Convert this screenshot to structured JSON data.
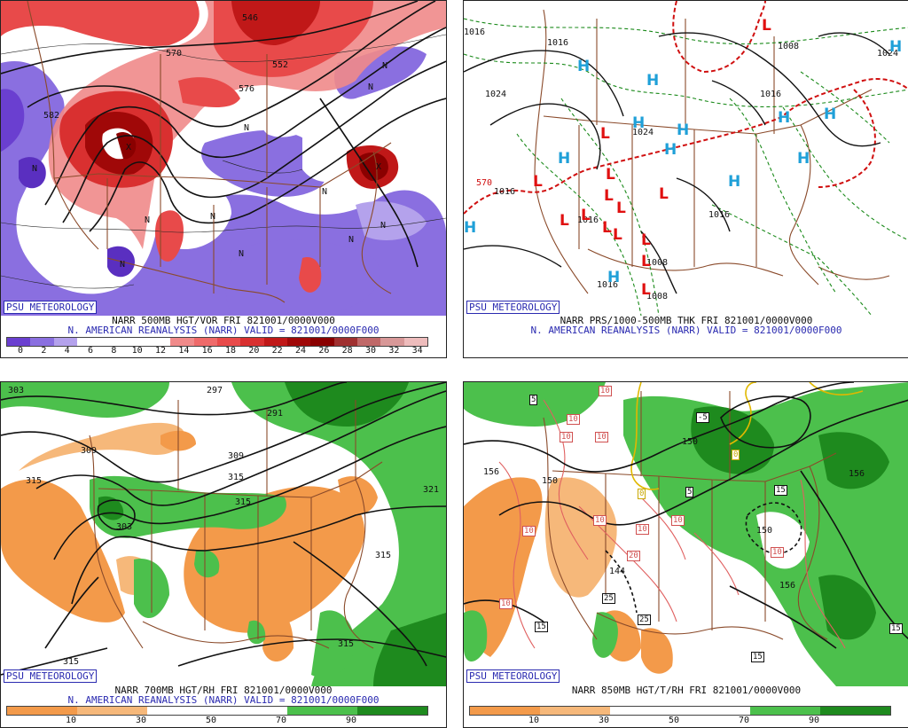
{
  "panels": {
    "p1": {
      "badge": "PSU METEOROLOGY",
      "caption1": "NARR 500MB HGT/VOR FRI 821001/0000V000",
      "caption2": "N. AMERICAN REANALYSIS (NARR) VALID = 821001/0000F000",
      "ticks": [
        "0",
        "2",
        "4",
        "6",
        "8",
        "10",
        "12",
        "14",
        "16",
        "18",
        "20",
        "22",
        "24",
        "26",
        "28",
        "30",
        "32",
        "34"
      ],
      "colorbar": [
        "#6a3fd0",
        "#8a6fe0",
        "#b4a2ec",
        "#ffffff",
        "#ffffff",
        "#ffffff",
        "#ffffff",
        "#f08a8a",
        "#ef6a6a",
        "#e84a4a",
        "#d93030",
        "#c01818",
        "#a00808",
        "#8a0000",
        "#a03030",
        "#c06868",
        "#d89898",
        "#eebcbc"
      ],
      "contours": [
        "546",
        "552",
        "570",
        "582",
        "576"
      ],
      "n_marks": [
        "N",
        "N",
        "N",
        "N",
        "N",
        "N",
        "N",
        "N",
        "N",
        "N",
        "N",
        "X",
        "X"
      ]
    },
    "p2": {
      "badge": "PSU METEOROLOGY",
      "caption1": "NARR PRS/1000-500MB THK FRI 821001/0000V000",
      "caption2": "N. AMERICAN REANALYSIS (NARR) VALID = 821001/0000F000",
      "contours": [
        "1016",
        "1024",
        "1016",
        "1008",
        "1024",
        "1016",
        "1024",
        "1016",
        "570",
        "1016",
        "1008",
        "1008",
        "1016",
        "1016"
      ],
      "highs": [
        "H",
        "H",
        "H",
        "H",
        "H",
        "H",
        "H",
        "H",
        "H",
        "H",
        "H",
        "H",
        "H"
      ],
      "lows": [
        "L",
        "L",
        "L",
        "L",
        "L",
        "L",
        "L",
        "L",
        "L",
        "L",
        "L",
        "L",
        "L",
        "L"
      ]
    },
    "p3": {
      "badge": "PSU METEOROLOGY",
      "caption1": "NARR 700MB HGT/RH FRI 821001/0000V000",
      "caption2": "N. AMERICAN REANALYSIS (NARR) VALID = 821001/0000F000",
      "ticks": [
        "10",
        "30",
        "50",
        "70",
        "90"
      ],
      "colorbar": [
        "#f39a4a",
        "#f6b87a",
        "#ffffff",
        "#ffffff",
        "#4cc04c",
        "#1e8a1e"
      ],
      "contours": [
        "303",
        "297",
        "291",
        "309",
        "309",
        "315",
        "321",
        "303",
        "315",
        "315",
        "315",
        "315"
      ]
    },
    "p4": {
      "badge": "PSU METEOROLOGY",
      "caption1": "NARR 850MB HGT/T/RH FRI 821001/0000V000",
      "caption2": "",
      "ticks": [
        "10",
        "30",
        "50",
        "70",
        "90"
      ],
      "colorbar": [
        "#f39a4a",
        "#f6b87a",
        "#ffffff",
        "#ffffff",
        "#4cc04c",
        "#1e8a1e"
      ],
      "contours": [
        "156",
        "150",
        "150",
        "144",
        "156",
        "156",
        "150"
      ],
      "boxes_black": [
        "5",
        "-5",
        "5",
        "15",
        "15",
        "25",
        "25",
        "15",
        "15",
        "0"
      ],
      "boxes_red": [
        "10",
        "10",
        "10",
        "10",
        "10",
        "10",
        "10",
        "10",
        "10",
        "20",
        "10"
      ],
      "boxes_yellow": [
        "0",
        "0"
      ]
    }
  }
}
